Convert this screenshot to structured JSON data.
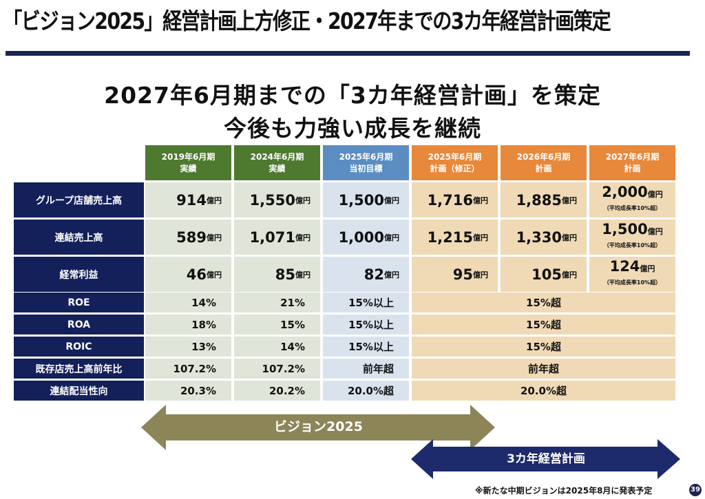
{
  "title": "「ビジョン2025」経営計画上方修正・2027年までの3カ年経営計画策定",
  "subtitle1": "2027年6月期までの「3カ年経営計画」を策定",
  "subtitle2": "今後も力強い成長を継続",
  "columns": [
    {
      "l1": "2019年6月期",
      "l2": "実績"
    },
    {
      "l1": "2024年6月期",
      "l2": "実績"
    },
    {
      "l1": "2025年6月期",
      "l2": "当初目標"
    },
    {
      "l1": "2025年6月期",
      "l2": "計画（修正）"
    },
    {
      "l1": "2026年6月期",
      "l2": "計画"
    },
    {
      "l1": "2027年6月期",
      "l2": "計画"
    }
  ],
  "unit": "億円",
  "growth_note": "（平均成長率10%超）",
  "rows": [
    {
      "label": "グループ店舗売上高",
      "values": [
        "914",
        "1,550",
        "1,500",
        "1,716",
        "1,885",
        "2,000"
      ]
    },
    {
      "label": "連結売上高",
      "values": [
        "589",
        "1,071",
        "1,000",
        "1,215",
        "1,330",
        "1,500"
      ]
    },
    {
      "label": "経常利益",
      "values": [
        "46",
        "85",
        "82",
        "95",
        "105",
        "124"
      ]
    }
  ],
  "ratio_rows": [
    {
      "label": "ROE",
      "values": [
        "14%",
        "21%",
        "15%以上"
      ],
      "plan": "15%超"
    },
    {
      "label": "ROA",
      "values": [
        "18%",
        "15%",
        "15%以上"
      ],
      "plan": "15%超"
    },
    {
      "label": "ROIC",
      "values": [
        "13%",
        "14%",
        "15%以上"
      ],
      "plan": "15%超"
    },
    {
      "label": "既存店売上高前年比",
      "values": [
        "107.2%",
        "107.2%",
        "前年超"
      ],
      "plan": "前年超"
    },
    {
      "label": "連結配当性向",
      "values": [
        "20.3%",
        "20.2%",
        "20.0%超"
      ],
      "plan": "20.0%超"
    }
  ],
  "arrow_vision": "ビジョン2025",
  "arrow_plan": "3カ年経営計画",
  "footnote": "※新たな中期ビジョンは2025年8月に発表予定",
  "page_number": "39",
  "colors": {
    "navy": "#14205a",
    "green": "#4e7a30",
    "blue": "#5b8dc2",
    "orange": "#e8883a",
    "olive": "#8c8558"
  }
}
